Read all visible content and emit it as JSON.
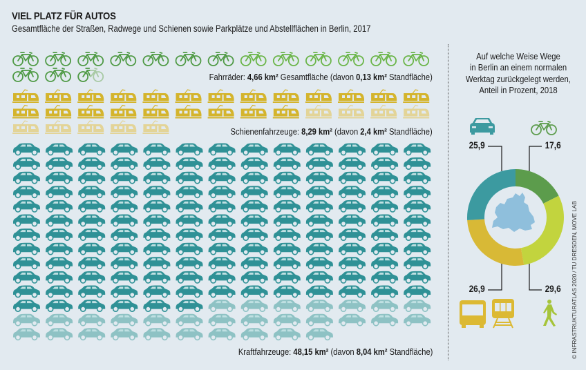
{
  "header": {
    "title": "VIEL PLATZ FÜR AUTOS",
    "subtitle": "Gesamtfläche der Straßen, Radwege und Schienen sowie Parkplätze und Abstellflächen in Berlin, 2017"
  },
  "colors": {
    "bike": "#4f9a45",
    "bike_light": "#6ab548",
    "bike_faded": "#a8c9a4",
    "train": "#d4b42c",
    "train_faded": "#e3d497",
    "car": "#2f9196",
    "car_faded": "#8ec2c4",
    "donut_bike": "#5c9c4c",
    "donut_walk": "#c2d43e",
    "donut_pt": "#d8b936",
    "donut_car": "#3c9aa0",
    "berlin_map": "#8fbfdc",
    "walk_icon": "#a6c43a",
    "pt_icon": "#dcb933"
  },
  "chart_data": [
    {
      "type": "pictogram",
      "title": "VIEL PLATZ FÜR AUTOS",
      "subtitle": "Gesamtfläche der Straßen, Radwege und Schienen sowie Parkplätze und Abstellflächen in Berlin, 2017",
      "icons_per_row": 13,
      "series": [
        {
          "name": "Fahrräder",
          "icon": "bicycle-icon",
          "total_km2": 4.66,
          "standing_km2": 0.13,
          "solid_icons": 15.5,
          "faded_icons": 0.5,
          "label_prefix": "Fahrräder: ",
          "label_total": "4,66 km²",
          "label_mid": " Gesamtfläche (davon ",
          "label_standing": "0,13 km²",
          "label_suffix": " Standfläche)"
        },
        {
          "name": "Schienenfahrzeuge",
          "icon": "train-icon",
          "total_km2": 8.29,
          "standing_km2": 2.4,
          "solid_icons": 22,
          "faded_icons": 9,
          "label_prefix": "Schienenfahrzeuge: ",
          "label_total": "8,29 km²",
          "label_mid": " (davon ",
          "label_standing": "2,4 km²",
          "label_suffix": " Standfläche)"
        },
        {
          "name": "Kraftfahrzeuge",
          "icon": "car-icon",
          "total_km2": 48.15,
          "standing_km2": 8.04,
          "solid_icons": 149,
          "faded_icons": 30,
          "label_prefix": "Kraftfahrzeuge: ",
          "label_total": "48,15 km²",
          "label_mid": " (davon ",
          "label_standing": "8,04 km²",
          "label_suffix": " Standfläche)"
        }
      ]
    },
    {
      "type": "pie",
      "variant": "donut",
      "title": "Auf welche Weise Wege in Berlin an einem normalen Werktag zurückgelegt werden, Anteil in Prozent, 2018",
      "title_lines": [
        "Auf welche Weise Wege",
        "in Berlin an einem normalen",
        "Werktag zurückgelegt werden,",
        "Anteil in Prozent, 2018"
      ],
      "slices": [
        {
          "name": "Fahrrad",
          "value": 17.6,
          "label": "17,6",
          "icon": "bicycle-icon",
          "color_key": "donut_bike"
        },
        {
          "name": "Zu Fuß",
          "value": 29.6,
          "label": "29,6",
          "icon": "walking-person-icon",
          "color_key": "donut_walk"
        },
        {
          "name": "ÖPNV",
          "value": 26.9,
          "label": "26,9",
          "icon": "bus-and-train-icon",
          "color_key": "donut_pt"
        },
        {
          "name": "Auto",
          "value": 25.9,
          "label": "25,9",
          "icon": "car-icon",
          "color_key": "donut_car"
        }
      ],
      "center_image": "berlin-map"
    }
  ],
  "credit": "© INFRASTRUKTURATLAS 2020 / TU DRESDEN, MOVE LAB"
}
